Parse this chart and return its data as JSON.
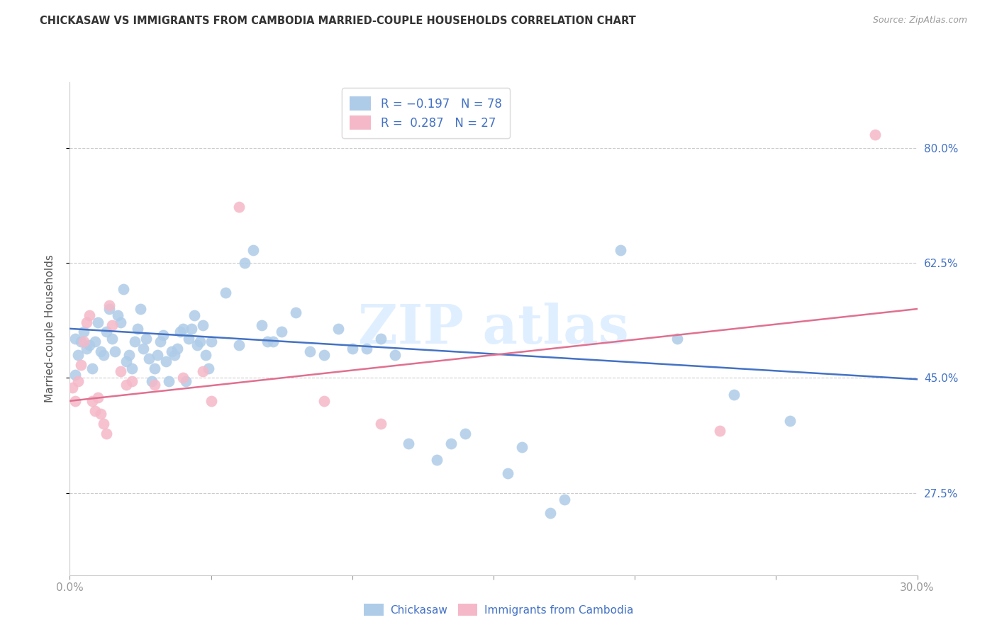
{
  "title": "CHICKASAW VS IMMIGRANTS FROM CAMBODIA MARRIED-COUPLE HOUSEHOLDS CORRELATION CHART",
  "source": "Source: ZipAtlas.com",
  "ylabel": "Married-couple Households",
  "ytick_labels": [
    "27.5%",
    "45.0%",
    "62.5%",
    "80.0%"
  ],
  "ytick_values": [
    0.275,
    0.45,
    0.625,
    0.8
  ],
  "xmin": 0.0,
  "xmax": 0.3,
  "ymin": 0.15,
  "ymax": 0.9,
  "blue_R": -0.197,
  "blue_N": 78,
  "pink_R": 0.287,
  "pink_N": 27,
  "blue_color": "#aecce8",
  "pink_color": "#f5b8c8",
  "blue_line_color": "#4472c4",
  "pink_line_color": "#e07090",
  "legend_blue_label": "Chickasaw",
  "legend_pink_label": "Immigrants from Cambodia",
  "blue_line": [
    [
      0.0,
      0.525
    ],
    [
      0.3,
      0.448
    ]
  ],
  "pink_line": [
    [
      0.0,
      0.415
    ],
    [
      0.3,
      0.555
    ]
  ],
  "blue_points": [
    [
      0.002,
      0.51
    ],
    [
      0.003,
      0.485
    ],
    [
      0.004,
      0.505
    ],
    [
      0.005,
      0.52
    ],
    [
      0.006,
      0.495
    ],
    [
      0.007,
      0.5
    ],
    [
      0.008,
      0.465
    ],
    [
      0.009,
      0.505
    ],
    [
      0.01,
      0.535
    ],
    [
      0.011,
      0.49
    ],
    [
      0.012,
      0.485
    ],
    [
      0.013,
      0.52
    ],
    [
      0.014,
      0.555
    ],
    [
      0.015,
      0.51
    ],
    [
      0.016,
      0.49
    ],
    [
      0.017,
      0.545
    ],
    [
      0.018,
      0.535
    ],
    [
      0.019,
      0.585
    ],
    [
      0.02,
      0.475
    ],
    [
      0.021,
      0.485
    ],
    [
      0.022,
      0.465
    ],
    [
      0.023,
      0.505
    ],
    [
      0.024,
      0.525
    ],
    [
      0.025,
      0.555
    ],
    [
      0.026,
      0.495
    ],
    [
      0.027,
      0.51
    ],
    [
      0.028,
      0.48
    ],
    [
      0.029,
      0.445
    ],
    [
      0.03,
      0.465
    ],
    [
      0.031,
      0.485
    ],
    [
      0.032,
      0.505
    ],
    [
      0.033,
      0.515
    ],
    [
      0.034,
      0.475
    ],
    [
      0.035,
      0.445
    ],
    [
      0.036,
      0.49
    ],
    [
      0.037,
      0.485
    ],
    [
      0.038,
      0.495
    ],
    [
      0.039,
      0.52
    ],
    [
      0.04,
      0.525
    ],
    [
      0.041,
      0.445
    ],
    [
      0.042,
      0.51
    ],
    [
      0.043,
      0.525
    ],
    [
      0.044,
      0.545
    ],
    [
      0.045,
      0.5
    ],
    [
      0.046,
      0.505
    ],
    [
      0.047,
      0.53
    ],
    [
      0.048,
      0.485
    ],
    [
      0.049,
      0.465
    ],
    [
      0.05,
      0.505
    ],
    [
      0.055,
      0.58
    ],
    [
      0.06,
      0.5
    ],
    [
      0.062,
      0.625
    ],
    [
      0.065,
      0.645
    ],
    [
      0.068,
      0.53
    ],
    [
      0.07,
      0.505
    ],
    [
      0.072,
      0.505
    ],
    [
      0.075,
      0.52
    ],
    [
      0.08,
      0.55
    ],
    [
      0.085,
      0.49
    ],
    [
      0.09,
      0.485
    ],
    [
      0.095,
      0.525
    ],
    [
      0.1,
      0.495
    ],
    [
      0.105,
      0.495
    ],
    [
      0.11,
      0.51
    ],
    [
      0.115,
      0.485
    ],
    [
      0.12,
      0.35
    ],
    [
      0.13,
      0.325
    ],
    [
      0.135,
      0.35
    ],
    [
      0.14,
      0.365
    ],
    [
      0.155,
      0.305
    ],
    [
      0.16,
      0.345
    ],
    [
      0.17,
      0.245
    ],
    [
      0.175,
      0.265
    ],
    [
      0.195,
      0.645
    ],
    [
      0.215,
      0.51
    ],
    [
      0.235,
      0.425
    ],
    [
      0.255,
      0.385
    ],
    [
      0.002,
      0.455
    ]
  ],
  "pink_points": [
    [
      0.001,
      0.435
    ],
    [
      0.002,
      0.415
    ],
    [
      0.003,
      0.445
    ],
    [
      0.004,
      0.47
    ],
    [
      0.005,
      0.505
    ],
    [
      0.006,
      0.535
    ],
    [
      0.007,
      0.545
    ],
    [
      0.008,
      0.415
    ],
    [
      0.009,
      0.4
    ],
    [
      0.01,
      0.42
    ],
    [
      0.011,
      0.395
    ],
    [
      0.012,
      0.38
    ],
    [
      0.013,
      0.365
    ],
    [
      0.014,
      0.56
    ],
    [
      0.015,
      0.53
    ],
    [
      0.018,
      0.46
    ],
    [
      0.02,
      0.44
    ],
    [
      0.022,
      0.445
    ],
    [
      0.03,
      0.44
    ],
    [
      0.04,
      0.45
    ],
    [
      0.047,
      0.46
    ],
    [
      0.05,
      0.415
    ],
    [
      0.06,
      0.71
    ],
    [
      0.09,
      0.415
    ],
    [
      0.11,
      0.38
    ],
    [
      0.23,
      0.37
    ],
    [
      0.285,
      0.82
    ]
  ]
}
